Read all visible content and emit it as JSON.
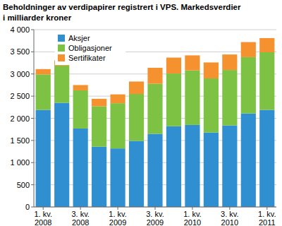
{
  "chart_data": {
    "type": "bar",
    "title": "Beholdninger av verdipapirer registrert i VPS. Markedsverdier i milliarder kroner",
    "categories": [
      "1. kv.\n2008",
      null,
      "3. kv.\n2008",
      null,
      "1. kv.\n2009",
      null,
      "3. kv.\n2009",
      null,
      "1. kv.\n2010",
      null,
      "3. kv.\n2010",
      null,
      "1. kv.\n2011"
    ],
    "series": [
      {
        "name": "Aksjer",
        "color": "#2f8fd0",
        "values": [
          2190,
          2350,
          1770,
          1360,
          1320,
          1490,
          1650,
          1820,
          1850,
          1680,
          1840,
          2110,
          2190
        ]
      },
      {
        "name": "Obligasjoner",
        "color": "#7dc242",
        "values": [
          800,
          840,
          860,
          910,
          1020,
          1060,
          1130,
          1190,
          1230,
          1220,
          1250,
          1270,
          1300
        ]
      },
      {
        "name": "Sertifikater",
        "color": "#f5922f",
        "values": [
          120,
          120,
          120,
          170,
          200,
          280,
          360,
          360,
          340,
          360,
          350,
          340,
          320
        ]
      }
    ],
    "ylim": [
      0,
      4000
    ],
    "yticks": [
      0,
      500,
      {
        "value": 1000,
        "label": "1 000"
      },
      {
        "value": 1500,
        "label": "1 500"
      },
      {
        "value": 2000,
        "label": "2 000"
      },
      {
        "value": 2500,
        "label": "2 500"
      },
      {
        "value": 3000,
        "label": "3 000"
      },
      {
        "value": 3500,
        "label": "3 500"
      },
      {
        "value": 4000,
        "label": "4 000"
      }
    ],
    "stacked": true,
    "grid": true,
    "legend": "top-left"
  }
}
